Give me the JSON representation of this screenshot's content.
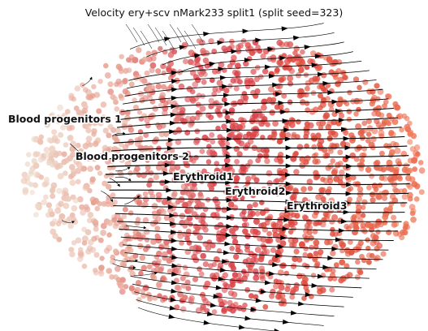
{
  "chart_data": {
    "type": "scatter",
    "title": "Velocity ery+scv nMark233 split1 (split seed=323)",
    "xlabel": "",
    "ylabel": "",
    "grid": false,
    "legend": "none",
    "overlay": "velocity streamlines",
    "colormap": [
      "#efdccd",
      "#e7a393",
      "#d9404b",
      "#e0503e",
      "#f07a5a"
    ],
    "clusters": [
      {
        "label": "Blood progenitors 1"
      },
      {
        "label": "Blood progenitors 2"
      },
      {
        "label": "Erythroid1"
      },
      {
        "label": "Erythroid2"
      },
      {
        "label": "Erythroid3"
      }
    ]
  }
}
